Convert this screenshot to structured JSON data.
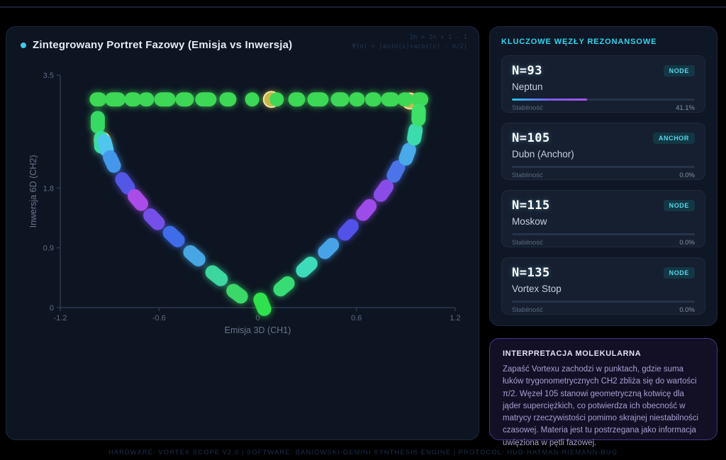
{
  "page": {
    "footer": "HARDWARE: VORTEX SCOPE V2.0 | SOFTWARE: BANIOWSKI-GEMINI SYNTHESIS ENGINE | PROTOCOL: HUD-HATMAN-RIEMANN-BUG"
  },
  "chart_panel": {
    "title": "Zintegrowany Portret Fazowy (Emisja vs Inwersja)",
    "formula_line1": "2n = 2n + 1 - 1",
    "formula_line2": "Ψ(n) = |asin(s)+acos(c) - π/2|"
  },
  "chart_data": {
    "type": "scatter",
    "title": "Zintegrowany Portret Fazowy (Emisja vs Inwersja)",
    "xlabel": "Emisja 3D (CH1)",
    "ylabel": "Inwersja 6D (CH2)",
    "xlim": [
      -1.2,
      1.2
    ],
    "ylim": [
      0,
      3.5
    ],
    "x_ticks": [
      {
        "v": -1.2,
        "label": "-1.2"
      },
      {
        "v": -0.6,
        "label": "-0.6"
      },
      {
        "v": 0,
        "label": "0"
      },
      {
        "v": 0.6,
        "label": "0.6"
      },
      {
        "v": 1.2,
        "label": "1.2"
      }
    ],
    "y_ticks": [
      {
        "v": 0,
        "label": "0"
      },
      {
        "v": 0.9,
        "label": "0.9"
      },
      {
        "v": 1.8,
        "label": "1.8"
      },
      {
        "v": 3.5,
        "label": "3.5"
      }
    ],
    "grid": false,
    "legend": "none",
    "top_row": {
      "y": 3.135,
      "color": "#3cd856",
      "points": [
        {
          "x": -0.97,
          "len": 4
        },
        {
          "x": -0.866,
          "len": 9
        },
        {
          "x": -0.758,
          "len": 4
        },
        {
          "x": -0.677,
          "len": 2
        },
        {
          "x": -0.564,
          "len": 10
        },
        {
          "x": -0.444,
          "len": 6
        },
        {
          "x": -0.315,
          "len": 10
        },
        {
          "x": -0.181,
          "len": 4
        },
        {
          "x": -0.034,
          "len": 0
        },
        {
          "x": 0.116,
          "len": 0
        },
        {
          "x": 0.237,
          "len": 4
        },
        {
          "x": 0.366,
          "len": 10
        },
        {
          "x": 0.5,
          "len": 6
        },
        {
          "x": 0.603,
          "len": 2
        },
        {
          "x": 0.702,
          "len": 3
        },
        {
          "x": 0.806,
          "len": 6
        },
        {
          "x": 0.896,
          "len": 2
        },
        {
          "x": 0.985,
          "len": 4
        }
      ]
    },
    "left_branch": [
      {
        "x": -0.972,
        "y": 2.79,
        "angle": -90,
        "color": "#36d964",
        "len": 12
      },
      {
        "x": -0.952,
        "y": 2.49,
        "angle": -88,
        "color": "#38dfa0",
        "len": 12
      },
      {
        "x": -0.925,
        "y": 2.44,
        "angle": -75,
        "color": "#50c6ee",
        "len": 12
      },
      {
        "x": -0.886,
        "y": 2.2,
        "angle": -65,
        "color": "#4597ea",
        "len": 13
      },
      {
        "x": -0.806,
        "y": 1.87,
        "angle": -55,
        "color": "#5457e6",
        "len": 14
      },
      {
        "x": -0.728,
        "y": 1.62,
        "angle": -50,
        "color": "#a94ce8",
        "len": 14
      },
      {
        "x": -0.63,
        "y": 1.33,
        "angle": -46,
        "color": "#7450e9",
        "len": 15
      },
      {
        "x": -0.51,
        "y": 1.07,
        "angle": -43,
        "color": "#3f6ce9",
        "len": 15
      },
      {
        "x": -0.385,
        "y": 0.78,
        "angle": -41,
        "color": "#47a6e4",
        "len": 15
      },
      {
        "x": -0.25,
        "y": 0.48,
        "angle": -39,
        "color": "#3cd69e",
        "len": 15
      },
      {
        "x": -0.125,
        "y": 0.21,
        "angle": -37,
        "color": "#3bd768",
        "len": 13
      },
      {
        "x": 0.028,
        "y": 0.05,
        "angle": -68,
        "color": "#2fe24d",
        "len": 14
      }
    ],
    "right_branch": [
      {
        "x": 0.16,
        "y": 0.32,
        "angle": 40,
        "color": "#37dd74",
        "len": 13
      },
      {
        "x": 0.298,
        "y": 0.61,
        "angle": 42,
        "color": "#3edbba",
        "len": 14
      },
      {
        "x": 0.43,
        "y": 0.89,
        "angle": 45,
        "color": "#47a3e8",
        "len": 14
      },
      {
        "x": 0.55,
        "y": 1.17,
        "angle": 48,
        "color": "#5352e8",
        "len": 14
      },
      {
        "x": 0.66,
        "y": 1.47,
        "angle": 50,
        "color": "#9d4be9",
        "len": 14
      },
      {
        "x": 0.765,
        "y": 1.76,
        "angle": 55,
        "color": "#8a4ce9",
        "len": 14
      },
      {
        "x": 0.84,
        "y": 2.05,
        "angle": 62,
        "color": "#4b74e8",
        "len": 13
      },
      {
        "x": 0.91,
        "y": 2.31,
        "angle": 70,
        "color": "#4aa9e8",
        "len": 13
      },
      {
        "x": 0.955,
        "y": 2.61,
        "angle": 80,
        "color": "#3cdcae",
        "len": 12
      },
      {
        "x": 0.978,
        "y": 2.9,
        "angle": 88,
        "color": "#3ee06a",
        "len": 12
      }
    ],
    "anchor_nodes": [
      {
        "x": 0.083,
        "y": 3.135,
        "r": 11,
        "fill": "#c9ba48",
        "ring": "#ece5ae"
      },
      {
        "x": 0.925,
        "y": 3.11,
        "r": 11,
        "fill": "#c9ba48",
        "ring": "#ece5ae"
      },
      {
        "x": -0.945,
        "y": 2.52,
        "r": 11,
        "fill": "#c9ba48",
        "ring": "#ece5ae"
      }
    ]
  },
  "sidebar": {
    "header": "KLUCZOWE WĘZŁY REZONANSOWE",
    "stability_label": "Stabilność",
    "cards": [
      {
        "id": "N=93",
        "badge": "NODE",
        "name": "Neptun",
        "stability_label": "Stabilność",
        "stability_value": "41.1%",
        "stability_pct": 41.1
      },
      {
        "id": "N=105",
        "badge": "ANCHOR",
        "name": "Dubn (Anchor)",
        "stability_label": "Stabilność",
        "stability_value": "0.0%",
        "stability_pct": 0
      },
      {
        "id": "N=115",
        "badge": "NODE",
        "name": "Moskow",
        "stability_label": "Stabilność",
        "stability_value": "0.0%",
        "stability_pct": 0
      },
      {
        "id": "N=135",
        "badge": "NODE",
        "name": "Vortex Stop",
        "stability_label": "Stabilność",
        "stability_value": "0.0%",
        "stability_pct": 0
      }
    ]
  },
  "interpretation": {
    "header": "INTERPRETACJA MOLEKULARNA",
    "body": "Zapaść Vortexu zachodzi w punktach, gdzie suma łuków trygonometrycznych CH2 zbliża się do wartości π/2. Węzeł 105 stanowi geometryczną kotwicę dla jąder superciężkich, co potwierdza ich obecność w matrycy rzeczywistości pomimo skrajnej niestabilności czasowej. Materia jest tu postrzegana jako informacja uwięziona w pętli fazowej."
  },
  "colors": {
    "accent_cyan": "#2fd6ee",
    "accent_purple": "#a855f7",
    "anchor_yellow": "#c9ba48",
    "panel_bg": "#0d1522",
    "card_bg": "#151f2f",
    "interp_border": "#43378c"
  }
}
